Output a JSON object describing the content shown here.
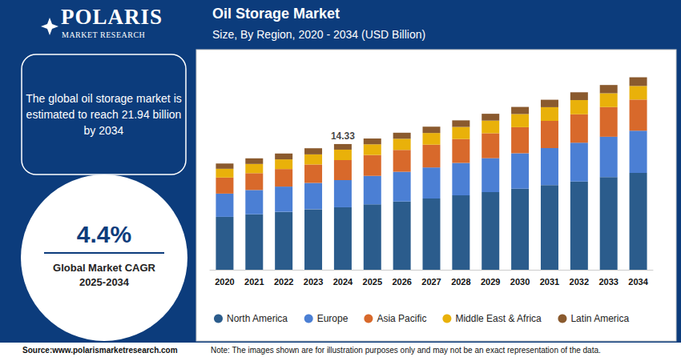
{
  "brand": {
    "name": "POLARIS",
    "tagline": "MARKET RESEARCH"
  },
  "panel": {
    "text": "The global oil storage market is estimated to reach 21.94 billion by 2034",
    "cagr": "4.4%",
    "cagr_label": "Global Market CAGR",
    "cagr_period": "2025-2034"
  },
  "source": "Source:www.polarismarketresearch.com",
  "note": "Note: The images shown are for illustration purposes only and may not be an exact representation of the data.",
  "chart_data": {
    "type": "bar",
    "title": "Oil Storage Market",
    "subtitle": "Size, By Region, 2020 - 2034 (USD Billion)",
    "categories": [
      "2020",
      "2021",
      "2022",
      "2023",
      "2024",
      "2025",
      "2026",
      "2027",
      "2028",
      "2029",
      "2030",
      "2031",
      "2032",
      "2033",
      "2034"
    ],
    "series": [
      {
        "name": "North America",
        "color": "#2b5c8c",
        "values": [
          6.03,
          6.32,
          6.6,
          6.9,
          7.12,
          7.45,
          7.78,
          8.12,
          8.48,
          8.85,
          9.24,
          9.65,
          10.07,
          10.56,
          11.05
        ]
      },
      {
        "name": "Europe",
        "color": "#4b7fd4",
        "values": [
          2.65,
          2.77,
          2.88,
          3.0,
          3.1,
          3.25,
          3.39,
          3.54,
          3.7,
          3.87,
          4.04,
          4.22,
          4.41,
          4.6,
          4.8
        ]
      },
      {
        "name": "Asia Pacific",
        "color": "#d8692b",
        "values": [
          1.83,
          1.92,
          2.0,
          2.1,
          2.28,
          2.38,
          2.49,
          2.6,
          2.72,
          2.84,
          2.97,
          3.1,
          3.24,
          3.38,
          3.55
        ]
      },
      {
        "name": "Middle East & Africa",
        "color": "#e9b10a",
        "values": [
          1.0,
          1.05,
          1.1,
          1.15,
          1.19,
          1.22,
          1.27,
          1.33,
          1.38,
          1.44,
          1.5,
          1.56,
          1.62,
          1.58,
          1.55
        ]
      },
      {
        "name": "Latin America",
        "color": "#8a5a2e",
        "values": [
          0.6,
          0.64,
          0.67,
          0.7,
          0.64,
          0.66,
          0.69,
          0.72,
          0.75,
          0.78,
          0.81,
          0.85,
          0.89,
          0.94,
          0.99
        ]
      }
    ],
    "annotations": [
      {
        "x": "2024",
        "y": 14.33
      }
    ],
    "ylim": [
      0,
      25
    ],
    "yticks": [
      0,
      25
    ],
    "stacked": true,
    "grid": false,
    "legend": "bottom",
    "tick_labels": "x"
  }
}
